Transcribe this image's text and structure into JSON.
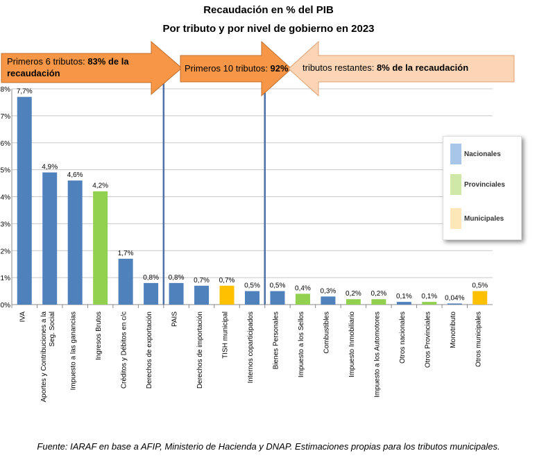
{
  "title": "Recaudación en % del PIB",
  "subtitle": "Por tributo y por nivel de gobierno en 2023",
  "arrows": {
    "a1_plain": "Primeros 6 tributos: ",
    "a1_bold": "83% de la recaudación",
    "a2_plain": "Primeros 10 tributos: ",
    "a2_bold": "92%",
    "a3_plain": "tributos restantes: ",
    "a3_bold": "8% de la recaudación"
  },
  "legend": {
    "nacionales": "Nacionales",
    "provinciales": "Provinciales",
    "municipales": "Municipales"
  },
  "source": "Fuente: IARAF en base a AFIP, Ministerio de Hacienda y DNAP.  Estimaciones propias para los tributos municipales.",
  "colors": {
    "Nacionales": "#4f81bd",
    "Provinciales": "#92d050",
    "Municipales": "#ffc000",
    "arrow_main": "#f79646",
    "arrow_light": "#fbd5b5"
  },
  "chart_data": {
    "type": "bar",
    "title": "Recaudación en % del PIB",
    "subtitle": "Por tributo y por nivel de gobierno en 2023",
    "ylim": [
      0,
      8
    ],
    "yticks": [
      "0%",
      "1%",
      "2%",
      "3%",
      "4%",
      "5%",
      "6%",
      "7%",
      "8%"
    ],
    "grid": true,
    "legend_position": "right",
    "categories": [
      "IVA",
      "Aportes y Contribuciones a la Seg. Social",
      "Impuesto a las ganancias",
      "Ingresos Brutos",
      "Créditos y Débitos en c/c",
      "Derechos de exportación",
      "PAIS",
      "Derechos de importación",
      "TISH municipal",
      "Internos coparticipados",
      "Bienes Personales",
      "Impuesto a los Sellos",
      "Combustibles",
      "Impuesto Inmobiliario",
      "Impuesto a los Automotores",
      "Otros nacionales",
      "Otros Provinciales",
      "Monotributo",
      "Otros municipales"
    ],
    "values": [
      7.7,
      4.9,
      4.6,
      4.2,
      1.7,
      0.8,
      0.8,
      0.7,
      0.7,
      0.5,
      0.5,
      0.4,
      0.3,
      0.2,
      0.2,
      0.1,
      0.1,
      0.04,
      0.5
    ],
    "labels": [
      "7,7%",
      "4,9%",
      "4,6%",
      "4,2%",
      "1,7%",
      "0,8%",
      "0,8%",
      "0,7%",
      "0,7%",
      "0,5%",
      "0,5%",
      "0,4%",
      "0,3%",
      "0,2%",
      "0,2%",
      "0,1%",
      "0,1%",
      "0,04%",
      "0,5%"
    ],
    "levels": [
      "Nacionales",
      "Nacionales",
      "Nacionales",
      "Provinciales",
      "Nacionales",
      "Nacionales",
      "Nacionales",
      "Nacionales",
      "Municipales",
      "Nacionales",
      "Nacionales",
      "Provinciales",
      "Nacionales",
      "Provinciales",
      "Provinciales",
      "Nacionales",
      "Provinciales",
      "Nacionales",
      "Municipales"
    ],
    "series_legend": [
      "Nacionales",
      "Provinciales",
      "Municipales"
    ]
  }
}
